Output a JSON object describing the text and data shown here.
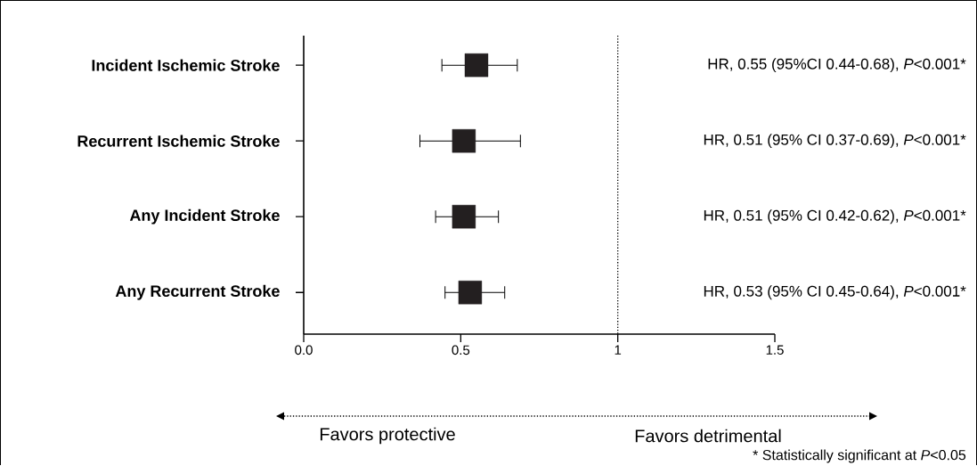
{
  "chart_data": {
    "type": "scatter",
    "orientation": "horizontal",
    "marker": "square",
    "categories": [
      "Incident Ischemic Stroke",
      "Recurrent Ischemic Stroke",
      "Any Incident Stroke",
      "Any Recurrent Stroke"
    ],
    "values": [
      0.55,
      0.51,
      0.51,
      0.53
    ],
    "errors": [
      [
        0.44,
        0.68
      ],
      [
        0.37,
        0.69
      ],
      [
        0.42,
        0.62
      ],
      [
        0.45,
        0.64
      ]
    ],
    "color": "#231f20",
    "value_labels": [
      "HR, 0.55 (95%CI 0.44-0.68), *P*<0.001*",
      "HR, 0.51 (95% CI 0.37-0.69), *P*<0.001*",
      "HR, 0.51 (95% CI 0.42-0.62), *P*<0.001*",
      "HR, 0.53 (95% CI 0.45-0.64), *P*<0.001*"
    ],
    "xlim": [
      0,
      1.5
    ],
    "xticks": [
      {
        "value": 0,
        "label": "0.0"
      },
      0.5,
      1,
      1.5
    ],
    "ref_lines": [
      {
        "axis": "x",
        "value": 1,
        "line_style": "dotted"
      }
    ],
    "annotations": [
      "Favors protective",
      "Favors detrimental",
      "* Statistically significant at *P*<0.05"
    ]
  }
}
